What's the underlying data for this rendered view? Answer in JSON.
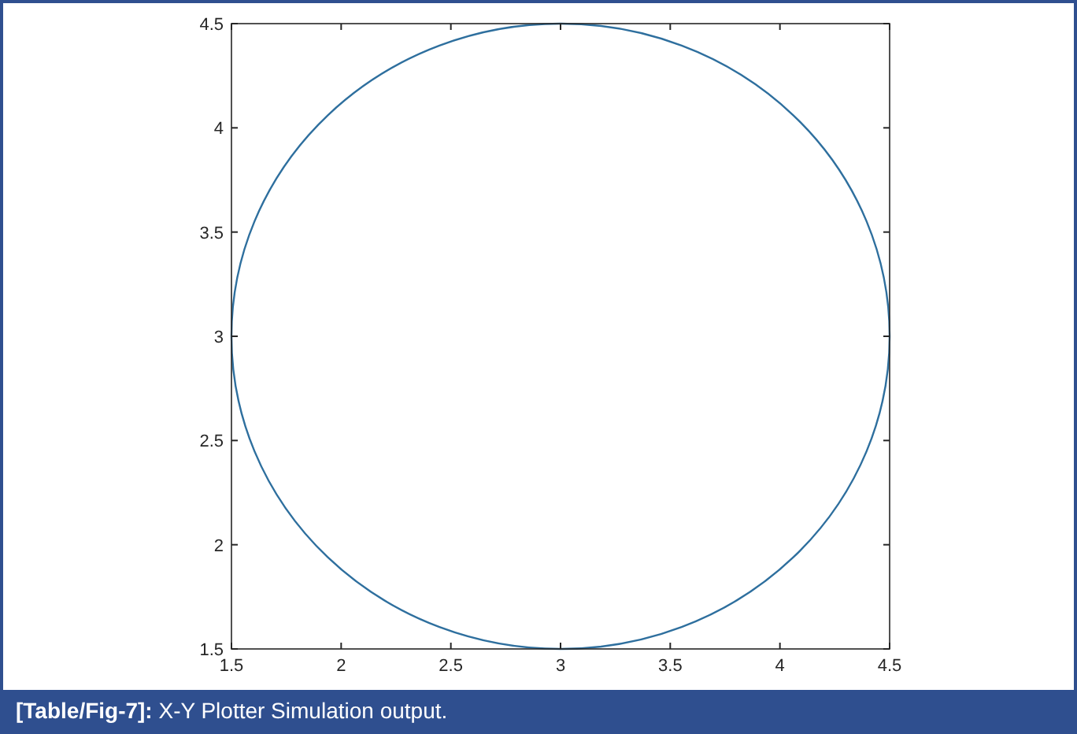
{
  "chart_data": {
    "type": "line",
    "annotations": [
      "[Table/Fig-7]: X-Y Plotter Simulation output."
    ],
    "xlim": [
      1.5,
      4.5
    ],
    "xticks": [
      1.5,
      2,
      2.5,
      3,
      3.5,
      4,
      4.5
    ],
    "ylim": [
      1.5,
      4.5
    ],
    "yticks": [
      1.5,
      2,
      2.5,
      3,
      3.5,
      4,
      4.5
    ],
    "grid": false
  }
}
